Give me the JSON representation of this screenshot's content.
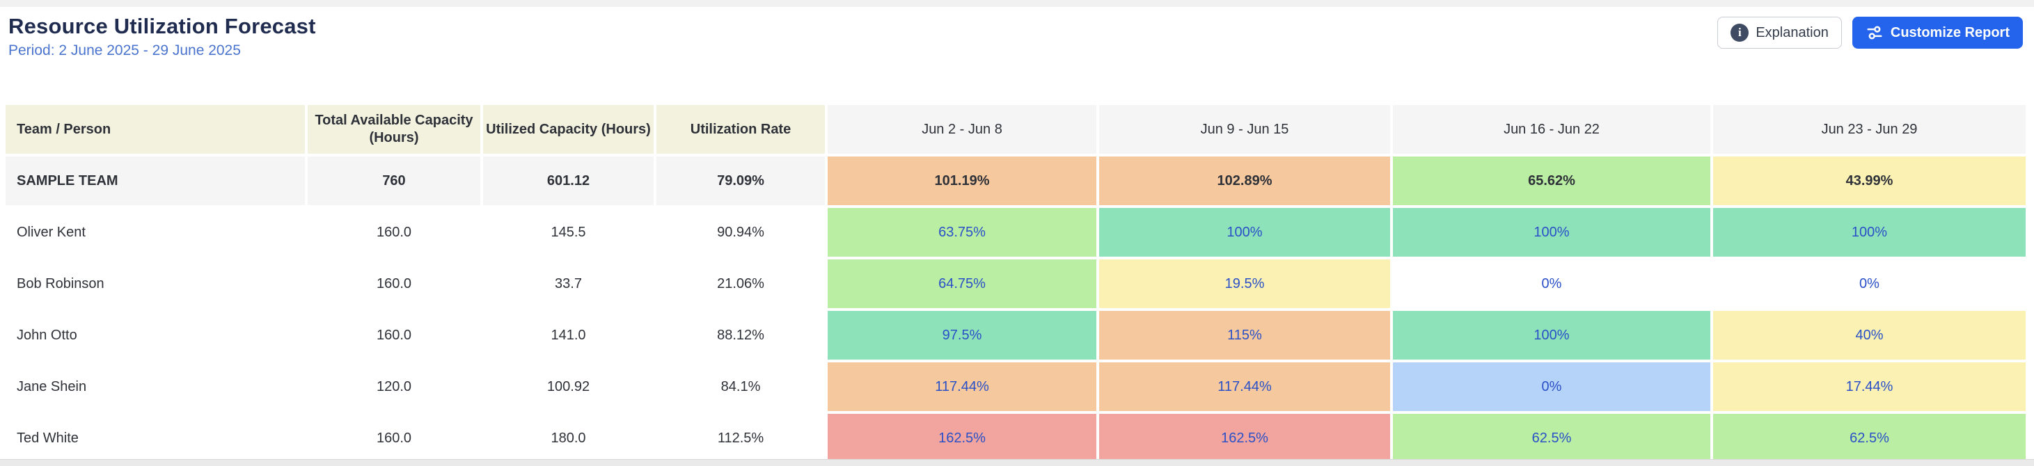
{
  "page": {
    "title": "Resource Utilization Forecast",
    "period": "Period: 2 June 2025 - 29 June 2025"
  },
  "toolbar": {
    "explanation_label": "Explanation",
    "customize_label": "Customize Report",
    "explanation_icon": "info-icon",
    "customize_icon": "sliders-icon"
  },
  "table": {
    "columns": [
      "Team / Person",
      "Total Available Capacity (Hours)",
      "Utilized Capacity (Hours)",
      "Utilization Rate",
      "Jun 2 - Jun 8",
      "Jun 9 - Jun 15",
      "Jun 16 - Jun 22",
      "Jun 23 - Jun 29"
    ],
    "rows": [
      {
        "name": "SAMPLE TEAM",
        "is_team": true,
        "total_available": "760",
        "utilized": "601.12",
        "rate": "79.09%",
        "weeks": [
          {
            "value": "101.19%",
            "color": "peach"
          },
          {
            "value": "102.89%",
            "color": "peach"
          },
          {
            "value": "65.62%",
            "color": "green"
          },
          {
            "value": "43.99%",
            "color": "yellow"
          }
        ]
      },
      {
        "name": "Oliver Kent",
        "is_team": false,
        "total_available": "160.0",
        "utilized": "145.5",
        "rate": "90.94%",
        "weeks": [
          {
            "value": "63.75%",
            "color": "green"
          },
          {
            "value": "100%",
            "color": "teal"
          },
          {
            "value": "100%",
            "color": "teal"
          },
          {
            "value": "100%",
            "color": "teal"
          }
        ]
      },
      {
        "name": "Bob Robinson",
        "is_team": false,
        "total_available": "160.0",
        "utilized": "33.7",
        "rate": "21.06%",
        "weeks": [
          {
            "value": "64.75%",
            "color": "green"
          },
          {
            "value": "19.5%",
            "color": "yellow"
          },
          {
            "value": "0%",
            "color": "white"
          },
          {
            "value": "0%",
            "color": "white"
          }
        ]
      },
      {
        "name": "John Otto",
        "is_team": false,
        "total_available": "160.0",
        "utilized": "141.0",
        "rate": "88.12%",
        "weeks": [
          {
            "value": "97.5%",
            "color": "teal"
          },
          {
            "value": "115%",
            "color": "peach"
          },
          {
            "value": "100%",
            "color": "teal"
          },
          {
            "value": "40%",
            "color": "yellow"
          }
        ]
      },
      {
        "name": "Jane Shein",
        "is_team": false,
        "total_available": "120.0",
        "utilized": "100.92",
        "rate": "84.1%",
        "weeks": [
          {
            "value": "117.44%",
            "color": "peach"
          },
          {
            "value": "117.44%",
            "color": "peach"
          },
          {
            "value": "0%",
            "color": "blue"
          },
          {
            "value": "17.44%",
            "color": "yellow"
          }
        ]
      },
      {
        "name": "Ted White",
        "is_team": false,
        "total_available": "160.0",
        "utilized": "180.0",
        "rate": "112.5%",
        "weeks": [
          {
            "value": "162.5%",
            "color": "salmon"
          },
          {
            "value": "162.5%",
            "color": "salmon"
          },
          {
            "value": "62.5%",
            "color": "green"
          },
          {
            "value": "62.5%",
            "color": "green"
          }
        ]
      }
    ]
  },
  "colors": {
    "title_text": "#1f2b4f",
    "period_text": "#4b74ce",
    "customize_button": "#2463eb",
    "link_text": "#2a50c8",
    "header_cream": "#f2f2df",
    "header_gray": "#f5f5f5",
    "cell_peach": "#f5c89d",
    "cell_salmon": "#f1a59e",
    "cell_green": "#baeea3",
    "cell_teal": "#8de2ba",
    "cell_yellow": "#faf1b3",
    "cell_blue": "#b5d3f8"
  }
}
